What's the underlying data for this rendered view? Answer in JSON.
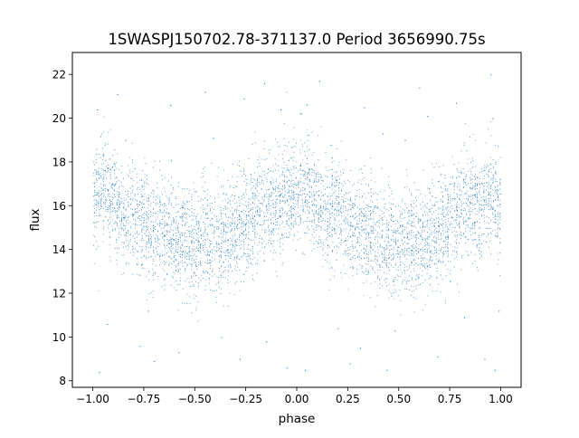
{
  "chart_data": {
    "type": "scatter",
    "title": "1SWASPJ150702.78-371137.0 Period 3656990.75s",
    "xlabel": "phase",
    "ylabel": "flux",
    "xlim": [
      -1.1,
      1.1
    ],
    "ylim": [
      7.7,
      23.0
    ],
    "xticks": [
      -1.0,
      -0.75,
      -0.5,
      -0.25,
      0.0,
      0.25,
      0.5,
      0.75,
      1.0
    ],
    "xtick_labels": [
      "−1.00",
      "−0.75",
      "−0.50",
      "−0.25",
      "0.00",
      "0.25",
      "0.50",
      "0.75",
      "1.00"
    ],
    "yticks": [
      8,
      10,
      12,
      14,
      16,
      18,
      20,
      22
    ],
    "ytick_labels": [
      "8",
      "10",
      "12",
      "14",
      "16",
      "18",
      "20",
      "22"
    ],
    "grid": false,
    "marker_color": "#1f77b4",
    "series": [
      {
        "phase_profile": {
          "x": [
            -1.0,
            -0.95,
            -0.9,
            -0.85,
            -0.8,
            -0.75,
            -0.7,
            -0.65,
            -0.6,
            -0.55,
            -0.5,
            -0.45,
            -0.4,
            -0.35,
            -0.3,
            -0.25,
            -0.2,
            -0.15,
            -0.1,
            -0.05,
            0.0,
            0.05,
            0.1,
            0.15,
            0.2,
            0.25,
            0.3,
            0.35,
            0.4,
            0.45,
            0.5,
            0.55,
            0.6,
            0.65,
            0.7,
            0.75,
            0.8,
            0.85,
            0.9,
            0.95,
            1.0
          ],
          "median_flux": [
            16.0,
            16.9,
            16.3,
            15.4,
            15.8,
            15.2,
            14.8,
            15.1,
            14.6,
            14.3,
            14.0,
            14.6,
            14.1,
            14.7,
            14.9,
            15.2,
            15.7,
            16.3,
            16.0,
            16.6,
            16.3,
            16.9,
            16.2,
            15.4,
            15.8,
            15.2,
            14.8,
            15.1,
            14.6,
            14.3,
            14.0,
            14.6,
            14.1,
            14.7,
            14.9,
            15.2,
            15.7,
            16.3,
            16.0,
            16.6,
            16.0
          ],
          "spread_low": [
            13.9,
            14.6,
            14.0,
            13.2,
            13.4,
            12.9,
            12.6,
            12.8,
            12.4,
            12.1,
            11.8,
            12.4,
            12.0,
            12.5,
            12.7,
            13.0,
            13.5,
            14.0,
            13.8,
            14.3,
            14.0,
            14.6,
            14.0,
            13.2,
            13.4,
            12.9,
            12.6,
            12.8,
            12.4,
            12.1,
            11.8,
            12.4,
            12.0,
            12.5,
            12.7,
            13.0,
            13.5,
            14.0,
            13.8,
            14.3,
            13.9
          ],
          "spread_high": [
            18.6,
            19.2,
            18.7,
            17.8,
            18.6,
            17.9,
            17.3,
            18.0,
            17.2,
            16.9,
            16.5,
            17.3,
            16.7,
            17.2,
            17.5,
            17.8,
            18.4,
            19.0,
            18.6,
            19.1,
            18.8,
            19.6,
            18.8,
            18.0,
            18.6,
            17.9,
            17.3,
            18.0,
            17.2,
            16.9,
            16.5,
            17.3,
            16.7,
            17.2,
            17.5,
            17.8,
            18.4,
            19.0,
            18.6,
            19.2,
            18.6
          ]
        },
        "outliers": [
          [
            -0.98,
            20.4
          ],
          [
            -0.97,
            8.4
          ],
          [
            -0.93,
            10.6
          ],
          [
            -0.84,
            19.0
          ],
          [
            -0.77,
            9.6
          ],
          [
            -0.73,
            11.2
          ],
          [
            -0.62,
            20.6
          ],
          [
            -0.58,
            9.3
          ],
          [
            -0.41,
            19.1
          ],
          [
            -0.37,
            10.0
          ],
          [
            -0.28,
            9.0
          ],
          [
            -0.26,
            20.9
          ],
          [
            -0.16,
            21.6
          ],
          [
            -0.15,
            9.8
          ],
          [
            -0.08,
            20.4
          ],
          [
            -0.05,
            8.6
          ],
          [
            0.02,
            20.2
          ],
          [
            0.04,
            8.5
          ],
          [
            0.11,
            21.7
          ],
          [
            0.2,
            10.4
          ],
          [
            0.31,
            9.5
          ],
          [
            0.33,
            20.5
          ],
          [
            0.42,
            19.3
          ],
          [
            0.44,
            8.5
          ],
          [
            0.48,
            10.3
          ],
          [
            0.53,
            19.0
          ],
          [
            0.64,
            20.1
          ],
          [
            0.69,
            9.1
          ],
          [
            0.78,
            20.7
          ],
          [
            0.82,
            10.9
          ],
          [
            0.92,
            9.0
          ],
          [
            0.95,
            22.0
          ],
          [
            0.96,
            20.0
          ],
          [
            0.97,
            8.5
          ],
          [
            0.99,
            11.2
          ],
          [
            -0.88,
            21.1
          ],
          [
            0.6,
            21.4
          ],
          [
            -0.45,
            21.2
          ],
          [
            0.26,
            8.8
          ],
          [
            -0.7,
            8.9
          ]
        ]
      }
    ]
  }
}
